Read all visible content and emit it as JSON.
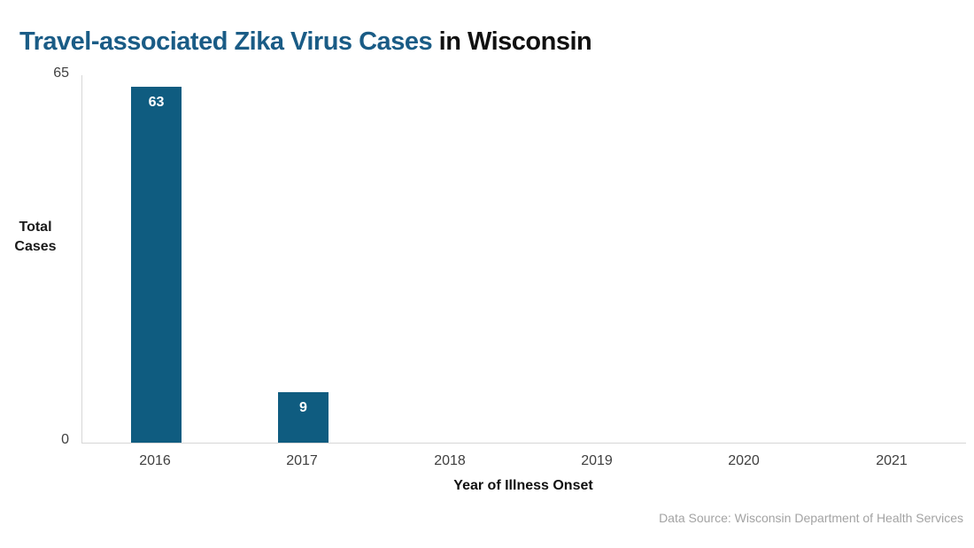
{
  "title": {
    "highlight": "Travel-associated Zika Virus Cases",
    "rest": " in Wisconsin"
  },
  "y_axis": {
    "label": "Total\nCases",
    "max_label": "65",
    "min_label": "0"
  },
  "x_axis": {
    "title": "Year of Illness Onset"
  },
  "source_note": "Data Source: Wisconsin Department of Health Services",
  "colors": {
    "bar": "#0f5c80",
    "title_highlight": "#1a5c86",
    "title_rest": "#111111",
    "axis_line": "#d6d6d6",
    "tick_text": "#404040",
    "bar_value_text": "#ffffff",
    "source_text": "#a3a3a3"
  },
  "chart_data": {
    "type": "bar",
    "title": "Travel-associated Zika Virus Cases in Wisconsin",
    "categories": [
      "2016",
      "2017",
      "2018",
      "2019",
      "2020",
      "2021"
    ],
    "values": [
      63,
      9,
      0,
      0,
      0,
      0
    ],
    "xlabel": "Year of Illness Onset",
    "ylabel": "Total Cases",
    "ylim": [
      0,
      65
    ],
    "ytick_labels": [
      "0",
      "65"
    ],
    "grid": false,
    "legend_position": "none",
    "bar_value_labels_shown_for_nonzero": true
  }
}
